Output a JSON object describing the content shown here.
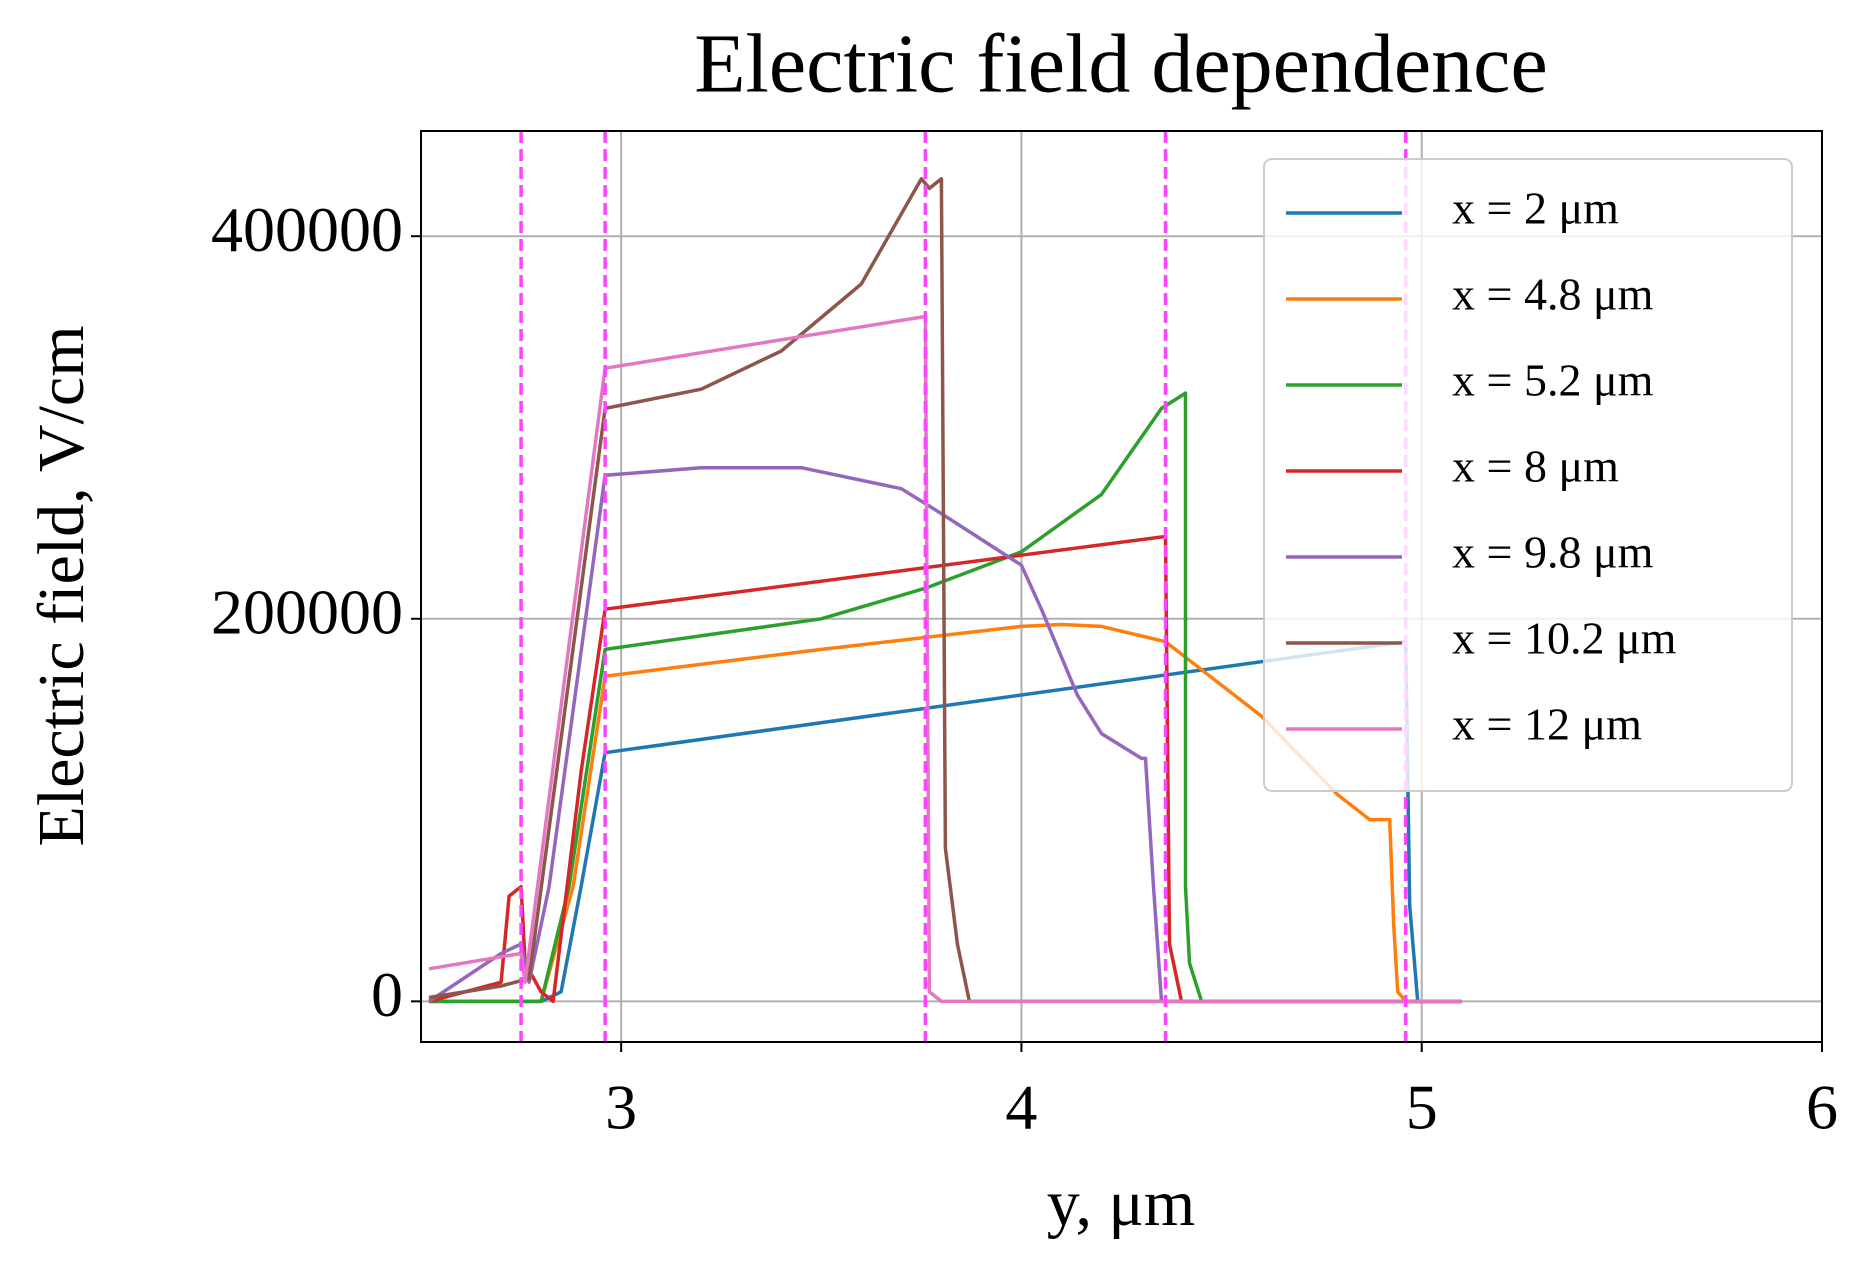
{
  "chart_data": {
    "type": "line",
    "title": "Electric field dependence",
    "xlabel": "y, μm",
    "ylabel": "Electric field, V/cm",
    "xlim": [
      2.5,
      6
    ],
    "ylim": [
      -21250,
      455000
    ],
    "xticks": [
      3,
      4,
      5,
      6
    ],
    "yticks": [
      0,
      200000,
      400000
    ],
    "grid": true,
    "legend_loc": "upper right",
    "vlines": [
      2.75,
      2.96,
      3.76,
      4.36,
      4.96
    ],
    "vline_color": "#ff44ff",
    "series": [
      {
        "name": "x = 2 μm",
        "color": "#1f77b4",
        "x": [
          2.52,
          2.8,
          2.85,
          2.9,
          2.96,
          4.96,
          4.97,
          4.99,
          5.1
        ],
        "values": [
          0,
          0,
          5000,
          60000,
          130000,
          188000,
          50000,
          0,
          0
        ]
      },
      {
        "name": "x = 4.8 μm",
        "color": "#ff7f0e",
        "x": [
          2.52,
          2.8,
          2.88,
          2.96,
          3.5,
          4.0,
          4.1,
          4.2,
          4.36,
          4.6,
          4.79,
          4.87,
          4.92,
          4.93,
          4.94,
          4.96,
          5.1
        ],
        "values": [
          0,
          0,
          60000,
          170000,
          184000,
          196000,
          197000,
          196000,
          188000,
          149000,
          108000,
          95000,
          95000,
          40000,
          5000,
          0,
          0
        ]
      },
      {
        "name": "x = 5.2 μm",
        "color": "#2ca02c",
        "x": [
          2.52,
          2.8,
          2.87,
          2.96,
          3.5,
          3.76,
          4.0,
          4.2,
          4.35,
          4.41,
          4.41,
          4.42,
          4.45,
          5.1
        ],
        "values": [
          0,
          0,
          60000,
          184000,
          200000,
          216000,
          235000,
          265000,
          310000,
          318000,
          60000,
          20000,
          0,
          0
        ]
      },
      {
        "name": "x = 8 μm",
        "color": "#d62728",
        "x": [
          2.52,
          2.7,
          2.72,
          2.75,
          2.76,
          2.8,
          2.83,
          2.9,
          2.96,
          4.36,
          4.37,
          4.4,
          5.1
        ],
        "values": [
          0,
          10000,
          55000,
          60000,
          20000,
          5000,
          0,
          120000,
          205000,
          243000,
          30000,
          0,
          0
        ]
      },
      {
        "name": "x = 9.8 μm",
        "color": "#9467bd",
        "x": [
          2.52,
          2.7,
          2.75,
          2.77,
          2.82,
          2.96,
          3.2,
          3.45,
          3.7,
          3.8,
          4.0,
          4.05,
          4.14,
          4.2,
          4.3,
          4.31,
          4.33,
          4.35,
          5.1
        ],
        "values": [
          0,
          25000,
          30000,
          10000,
          60000,
          275000,
          279000,
          279000,
          268000,
          255000,
          228000,
          205000,
          160000,
          140000,
          127000,
          127000,
          60000,
          0,
          0
        ]
      },
      {
        "name": "x = 10.2 μm",
        "color": "#8c564b",
        "x": [
          2.52,
          2.7,
          2.77,
          2.96,
          3.2,
          3.4,
          3.6,
          3.75,
          3.77,
          3.8,
          3.81,
          3.84,
          3.87,
          5.1
        ],
        "values": [
          2000,
          8000,
          12000,
          310000,
          320000,
          340000,
          375000,
          430000,
          425000,
          430000,
          80000,
          30000,
          0,
          0
        ]
      },
      {
        "name": "x = 12 μm",
        "color": "#e377c2",
        "x": [
          2.52,
          2.75,
          2.76,
          2.96,
          3.76,
          3.77,
          3.8,
          5.1
        ],
        "values": [
          17000,
          25000,
          10000,
          331000,
          358000,
          5000,
          0,
          0
        ]
      }
    ]
  }
}
